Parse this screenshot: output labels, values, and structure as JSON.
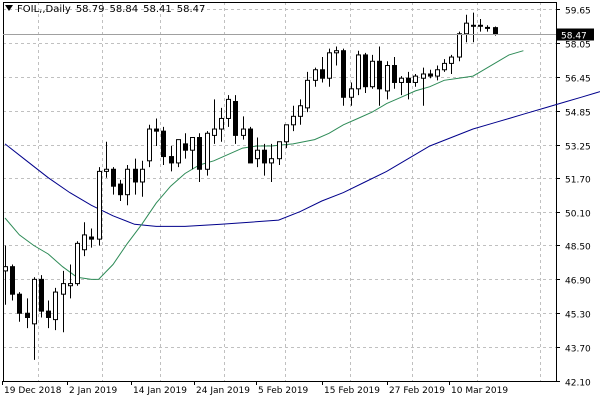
{
  "header": {
    "symbol": "FOIL,,Daily",
    "open": "58.79",
    "high": "58.84",
    "low": "58.41",
    "close": "58.47"
  },
  "price_label": "58.47",
  "colors": {
    "background": "#ffffff",
    "grid": "#c0c0c0",
    "axis": "#000000",
    "candle": "#000000",
    "ma_fast": "#2e8b57",
    "ma_slow": "#00008b",
    "price_line": "#a0a0a0",
    "price_tag": "#000000"
  },
  "chart_data": {
    "type": "candlestick",
    "ylim": [
      42.1,
      60.0
    ],
    "y_ticks": [
      "59.65",
      "58.05",
      "56.45",
      "54.85",
      "53.25",
      "51.70",
      "50.10",
      "48.50",
      "46.90",
      "45.30",
      "43.70",
      "42.10"
    ],
    "x_ticks": [
      "19 Dec 2018",
      "2 Jan 2019",
      "14 Jan 2019",
      "24 Jan 2019",
      "5 Feb 2019",
      "15 Feb 2019",
      "27 Feb 2019",
      "10 Mar 2019"
    ],
    "candles": [
      [
        47.3,
        48.5,
        45.7,
        47.5
      ],
      [
        47.5,
        47.6,
        45.9,
        46.2
      ],
      [
        46.2,
        46.3,
        44.9,
        45.3
      ],
      [
        45.3,
        46.0,
        44.6,
        45.1
      ],
      [
        44.8,
        47.0,
        43.1,
        46.9
      ],
      [
        46.9,
        47.1,
        45.1,
        45.4
      ],
      [
        45.4,
        45.9,
        44.6,
        45.1
      ],
      [
        45.0,
        46.5,
        44.5,
        46.3
      ],
      [
        46.2,
        47.3,
        44.4,
        46.7
      ],
      [
        46.6,
        47.6,
        46.0,
        46.7
      ],
      [
        46.7,
        48.7,
        46.6,
        48.6
      ],
      [
        48.3,
        49.6,
        48.0,
        49.0
      ],
      [
        48.9,
        49.3,
        48.4,
        48.8
      ],
      [
        48.8,
        52.2,
        48.5,
        52.0
      ],
      [
        52.0,
        53.4,
        51.7,
        52.1
      ],
      [
        52.1,
        52.2,
        50.9,
        51.3
      ],
      [
        51.4,
        51.6,
        50.6,
        50.9
      ],
      [
        50.9,
        52.3,
        50.4,
        52.1
      ],
      [
        52.1,
        52.6,
        50.9,
        51.5
      ],
      [
        51.5,
        52.5,
        50.8,
        52.1
      ],
      [
        52.5,
        54.2,
        52.2,
        54.0
      ],
      [
        54.0,
        54.5,
        53.2,
        53.9
      ],
      [
        53.9,
        54.1,
        52.3,
        52.7
      ],
      [
        52.7,
        53.2,
        52.0,
        52.4
      ],
      [
        52.4,
        53.4,
        52.2,
        53.5
      ],
      [
        53.3,
        53.8,
        52.6,
        53.0
      ],
      [
        53.0,
        53.6,
        52.1,
        53.6
      ],
      [
        53.6,
        53.8,
        51.5,
        52.1
      ],
      [
        52.1,
        53.9,
        51.8,
        53.8
      ],
      [
        53.7,
        55.4,
        53.3,
        54.0
      ],
      [
        54.0,
        55.0,
        53.4,
        54.5
      ],
      [
        54.5,
        55.6,
        54.1,
        55.4
      ],
      [
        55.3,
        55.6,
        53.3,
        53.7
      ],
      [
        53.7,
        54.6,
        53.5,
        54.0
      ],
      [
        54.0,
        54.1,
        52.4,
        52.4
      ],
      [
        52.6,
        53.6,
        52.2,
        53.0
      ],
      [
        53.0,
        53.3,
        51.8,
        52.4
      ],
      [
        52.4,
        53.3,
        51.5,
        52.6
      ],
      [
        52.6,
        53.4,
        52.3,
        53.4
      ],
      [
        53.4,
        54.2,
        53.1,
        54.2
      ],
      [
        54.2,
        55.1,
        53.9,
        54.6
      ],
      [
        54.6,
        55.4,
        54.2,
        55.1
      ],
      [
        55.0,
        56.7,
        54.8,
        56.3
      ],
      [
        56.3,
        56.9,
        56.0,
        56.8
      ],
      [
        56.8,
        57.4,
        56.2,
        56.4
      ],
      [
        56.4,
        57.8,
        56.0,
        57.6
      ],
      [
        57.6,
        57.9,
        57.0,
        57.7
      ],
      [
        57.7,
        57.8,
        55.1,
        55.5
      ],
      [
        55.5,
        56.2,
        55.1,
        55.9
      ],
      [
        55.9,
        57.7,
        55.6,
        57.5
      ],
      [
        57.5,
        57.6,
        55.7,
        56.0
      ],
      [
        56.0,
        57.5,
        55.9,
        57.2
      ],
      [
        57.2,
        57.9,
        55.1,
        55.9
      ],
      [
        55.8,
        57.2,
        55.4,
        57.0
      ],
      [
        57.0,
        57.4,
        55.9,
        56.2
      ],
      [
        56.2,
        56.5,
        55.6,
        56.4
      ],
      [
        56.4,
        56.7,
        55.4,
        56.2
      ],
      [
        56.2,
        56.6,
        56.0,
        56.5
      ],
      [
        56.4,
        56.9,
        55.1,
        56.6
      ],
      [
        56.6,
        56.8,
        56.4,
        56.5
      ],
      [
        56.5,
        57.0,
        56.3,
        56.8
      ],
      [
        56.8,
        57.3,
        56.7,
        57.1
      ],
      [
        57.1,
        57.5,
        56.6,
        57.4
      ],
      [
        57.4,
        58.6,
        57.2,
        58.5
      ],
      [
        58.5,
        59.4,
        58.1,
        59.0
      ],
      [
        58.9,
        59.5,
        58.1,
        58.9
      ],
      [
        58.9,
        59.2,
        58.6,
        58.9
      ],
      [
        58.8,
        58.9,
        58.6,
        58.8
      ],
      [
        58.79,
        58.84,
        58.41,
        58.47
      ]
    ],
    "ma_fast": [
      {
        "i": 0,
        "v": 49.8
      },
      {
        "i": 2,
        "v": 49.0
      },
      {
        "i": 4,
        "v": 48.5
      },
      {
        "i": 6,
        "v": 48.1
      },
      {
        "i": 8,
        "v": 47.5
      },
      {
        "i": 10,
        "v": 47.0
      },
      {
        "i": 12,
        "v": 46.9
      },
      {
        "i": 13,
        "v": 46.9
      },
      {
        "i": 15,
        "v": 47.6
      },
      {
        "i": 17,
        "v": 48.6
      },
      {
        "i": 19,
        "v": 49.5
      },
      {
        "i": 21,
        "v": 50.5
      },
      {
        "i": 23,
        "v": 51.3
      },
      {
        "i": 25,
        "v": 51.9
      },
      {
        "i": 27,
        "v": 52.3
      },
      {
        "i": 29,
        "v": 52.5
      },
      {
        "i": 31,
        "v": 52.8
      },
      {
        "i": 33,
        "v": 53.1
      },
      {
        "i": 35,
        "v": 53.2
      },
      {
        "i": 37,
        "v": 53.2
      },
      {
        "i": 40,
        "v": 53.3
      },
      {
        "i": 43,
        "v": 53.5
      },
      {
        "i": 45,
        "v": 53.8
      },
      {
        "i": 47,
        "v": 54.2
      },
      {
        "i": 49,
        "v": 54.5
      },
      {
        "i": 51,
        "v": 54.8
      },
      {
        "i": 53,
        "v": 55.2
      },
      {
        "i": 55,
        "v": 55.5
      },
      {
        "i": 57,
        "v": 55.8
      },
      {
        "i": 59,
        "v": 56.0
      },
      {
        "i": 61,
        "v": 56.3
      },
      {
        "i": 63,
        "v": 56.4
      },
      {
        "i": 65,
        "v": 56.5
      },
      {
        "i": 66,
        "v": 56.7
      },
      {
        "i": 68,
        "v": 57.1
      },
      {
        "i": 70,
        "v": 57.5
      },
      {
        "i": 72,
        "v": 57.7
      }
    ],
    "ma_slow": [
      {
        "i": 0,
        "v": 53.3
      },
      {
        "i": 3,
        "v": 52.5
      },
      {
        "i": 6,
        "v": 51.7
      },
      {
        "i": 9,
        "v": 51.0
      },
      {
        "i": 12,
        "v": 50.4
      },
      {
        "i": 15,
        "v": 49.9
      },
      {
        "i": 18,
        "v": 49.5
      },
      {
        "i": 21,
        "v": 49.4
      },
      {
        "i": 25,
        "v": 49.4
      },
      {
        "i": 30,
        "v": 49.5
      },
      {
        "i": 34,
        "v": 49.6
      },
      {
        "i": 38,
        "v": 49.7
      },
      {
        "i": 41,
        "v": 50.1
      },
      {
        "i": 44,
        "v": 50.6
      },
      {
        "i": 47,
        "v": 51.0
      },
      {
        "i": 50,
        "v": 51.5
      },
      {
        "i": 53,
        "v": 52.0
      },
      {
        "i": 56,
        "v": 52.6
      },
      {
        "i": 59,
        "v": 53.2
      },
      {
        "i": 62,
        "v": 53.6
      },
      {
        "i": 65,
        "v": 54.0
      },
      {
        "i": 68,
        "v": 54.3
      },
      {
        "i": 70,
        "v": 54.5
      },
      {
        "i": 72,
        "v": 54.7
      },
      {
        "i": 75,
        "v": 55.0
      },
      {
        "i": 78,
        "v": 55.3
      },
      {
        "i": 80,
        "v": 55.5
      },
      {
        "i": 82,
        "v": 55.7
      },
      {
        "i": 84,
        "v": 55.9
      },
      {
        "i": 86,
        "v": 56.1
      },
      {
        "i": 88,
        "v": 56.3
      }
    ]
  }
}
